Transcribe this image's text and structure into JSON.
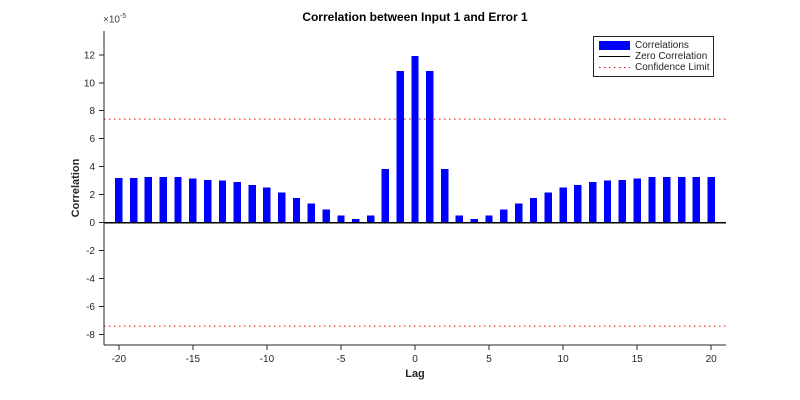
{
  "chart_data": {
    "type": "bar",
    "title": "Correlation between Input 1 and Error 1",
    "xlabel": "Lag",
    "ylabel": "Correlation",
    "y_scale_label": {
      "prefix": "×10",
      "exponent": "-5"
    },
    "value_unit": "1e-5",
    "x": [
      -20,
      -19,
      -18,
      -17,
      -16,
      -15,
      -14,
      -13,
      -12,
      -11,
      -10,
      -9,
      -8,
      -7,
      -6,
      -5,
      -4,
      -3,
      -2,
      -1,
      0,
      1,
      2,
      3,
      4,
      5,
      6,
      7,
      8,
      9,
      10,
      11,
      12,
      13,
      14,
      15,
      16,
      17,
      18,
      19,
      20
    ],
    "values": [
      3.2,
      3.2,
      3.25,
      3.25,
      3.25,
      3.15,
      3.05,
      3.0,
      2.9,
      2.7,
      2.5,
      2.15,
      1.75,
      1.35,
      0.95,
      0.5,
      0.25,
      0.5,
      3.85,
      10.85,
      11.9,
      10.85,
      3.85,
      0.5,
      0.25,
      0.5,
      0.95,
      1.35,
      1.75,
      2.15,
      2.5,
      2.7,
      2.9,
      3.0,
      3.05,
      3.15,
      3.25,
      3.25,
      3.25,
      3.25,
      3.25
    ],
    "xticks": [
      -20,
      -15,
      -10,
      -5,
      0,
      5,
      10,
      15,
      20
    ],
    "yticks": [
      -8,
      -6,
      -4,
      -2,
      0,
      2,
      4,
      6,
      8,
      10,
      12
    ],
    "xlim": [
      -21,
      21
    ],
    "ylim": [
      -8.75,
      13.7
    ],
    "zero_line_value": 0,
    "confidence_limit": 7.4,
    "grid": false,
    "bar_color": "#0000FF",
    "zero_line_color": "#000000",
    "confidence_color": "#FF0000",
    "axis_color": "#262626",
    "legend": {
      "position": "top-right",
      "entries": [
        {
          "label": "Correlations",
          "swatch": "bar",
          "color": "#0000FF"
        },
        {
          "label": "Zero Correlation",
          "swatch": "line",
          "color": "#000000"
        },
        {
          "label": "Confidence Limit",
          "swatch": "dotted-line",
          "color": "#FF0000"
        }
      ]
    }
  }
}
